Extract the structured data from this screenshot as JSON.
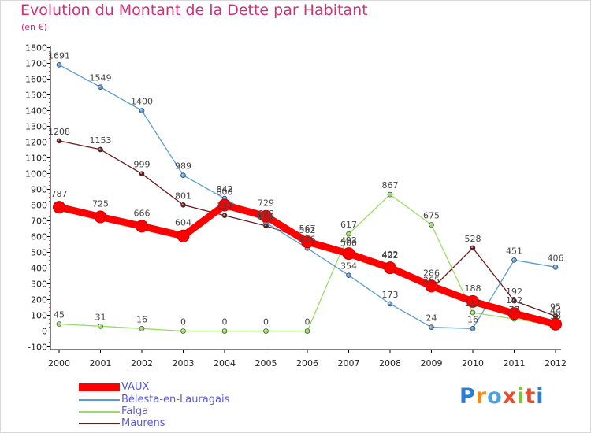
{
  "chart_data": {
    "type": "line",
    "title": "Evolution du Montant de la Dette par Habitant",
    "subtitle": "(en €)",
    "x": [
      "2000",
      "2001",
      "2002",
      "2003",
      "2004",
      "2005",
      "2006",
      "2007",
      "2008",
      "2009",
      "2010",
      "2011",
      "2012"
    ],
    "yticks": [
      -100,
      0,
      100,
      200,
      300,
      400,
      500,
      600,
      700,
      800,
      900,
      1000,
      1100,
      1200,
      1300,
      1400,
      1500,
      1600,
      1700,
      1800
    ],
    "ylim": [
      -100,
      1800
    ],
    "grid": false,
    "legend_position": "bottom-left",
    "series": [
      {
        "name": "VAUX",
        "color": "#ff0000",
        "values": [
          787,
          725,
          666,
          604,
          800,
          729,
          567,
          492,
          402,
          286,
          188,
          112,
          44
        ]
      },
      {
        "name": "Bélesta-en-Lauragais",
        "color": "#5b9bd5",
        "values": [
          1691,
          1549,
          1400,
          989,
          842,
          688,
          526,
          354,
          173,
          24,
          16,
          451,
          406
        ]
      },
      {
        "name": "Falga",
        "color": "#99dd66",
        "values": [
          45,
          31,
          16,
          0,
          0,
          0,
          0,
          617,
          867,
          675,
          117,
          77,
          38
        ]
      },
      {
        "name": "Maurens",
        "color": "#6b1a1a",
        "values": [
          1208,
          1153,
          999,
          801,
          734,
          668,
          582,
          500,
          422,
          265,
          528,
          192,
          95
        ]
      }
    ]
  },
  "brand": {
    "text": "Proxiti"
  }
}
